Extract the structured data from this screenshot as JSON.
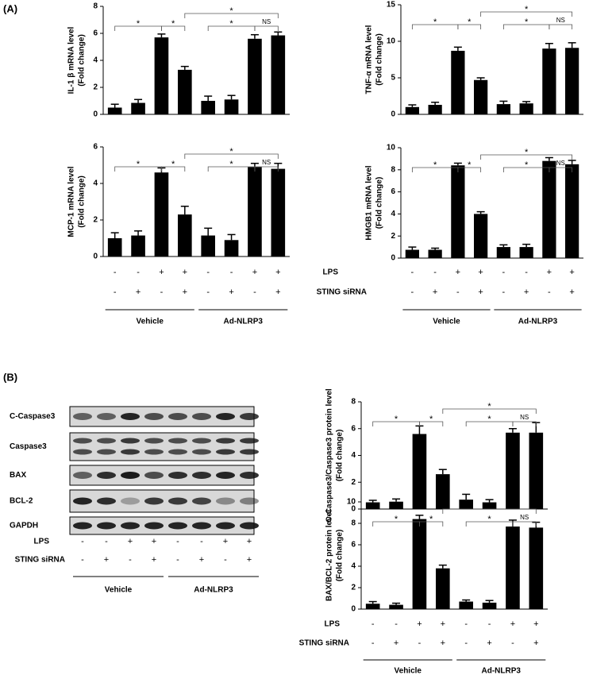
{
  "panel_labels": [
    "(A)",
    "(B)"
  ],
  "conditions": {
    "rows": [
      {
        "name": "LPS",
        "signs": [
          "-",
          "-",
          "+",
          "+",
          "-",
          "-",
          "+",
          "+"
        ]
      },
      {
        "name": "STING siRNA",
        "signs": [
          "-",
          "+",
          "-",
          "+",
          "-",
          "+",
          "-",
          "+"
        ]
      }
    ],
    "groups": [
      "Vehicle",
      "Ad-NLRP3"
    ]
  },
  "blot": {
    "labels": [
      "C-Caspase3",
      "Caspase3",
      "BAX",
      "BCL-2",
      "GAPDH"
    ]
  },
  "chart_data": [
    {
      "type": "bar",
      "y_label": [
        "IL-1 β mRNA level",
        "(Fold change)"
      ],
      "color": "#000000",
      "values": [
        0.5,
        0.85,
        5.7,
        3.3,
        1.0,
        1.1,
        5.6,
        5.85
      ],
      "errors": [
        0.25,
        0.25,
        0.25,
        0.25,
        0.35,
        0.3,
        0.3,
        0.25
      ],
      "ylim": [
        0,
        8
      ],
      "yticks": [
        0,
        2,
        4,
        6,
        8
      ],
      "annotations": [
        "*",
        "*",
        "*",
        "*",
        "NS"
      ]
    },
    {
      "type": "bar",
      "y_label": [
        "TNF-α mRNA level",
        "(Fold change)"
      ],
      "color": "#000000",
      "values": [
        1.0,
        1.3,
        8.7,
        4.7,
        1.4,
        1.5,
        9.0,
        9.1
      ],
      "errors": [
        0.3,
        0.35,
        0.5,
        0.3,
        0.4,
        0.25,
        0.7,
        0.7
      ],
      "ylim": [
        0,
        15
      ],
      "yticks": [
        0,
        5,
        10,
        15
      ],
      "annotations": [
        "*",
        "*",
        "*",
        "*",
        "NS"
      ]
    },
    {
      "type": "bar",
      "y_label": [
        "MCP-1 mRNA level",
        "(Fold change)"
      ],
      "color": "#000000",
      "values": [
        1.0,
        1.15,
        4.6,
        2.3,
        1.15,
        0.9,
        4.9,
        4.8
      ],
      "errors": [
        0.3,
        0.25,
        0.25,
        0.45,
        0.4,
        0.3,
        0.2,
        0.3
      ],
      "ylim": [
        0,
        6
      ],
      "yticks": [
        0,
        2,
        4,
        6
      ],
      "annotations": [
        "*",
        "*",
        "*",
        "*",
        "NS"
      ]
    },
    {
      "type": "bar",
      "y_label": [
        "HMGB1 mRNA level",
        "(Fold change)"
      ],
      "color": "#000000",
      "values": [
        0.75,
        0.75,
        8.4,
        4.0,
        1.0,
        1.0,
        8.8,
        8.5
      ],
      "errors": [
        0.25,
        0.15,
        0.2,
        0.2,
        0.2,
        0.25,
        0.3,
        0.35
      ],
      "ylim": [
        0,
        10
      ],
      "yticks": [
        0,
        2,
        4,
        6,
        8,
        10
      ],
      "annotations": [
        "*",
        "*",
        "*",
        "*",
        "NS"
      ]
    },
    {
      "type": "bar",
      "y_label": [
        "C-Caspase3/Caspase3 protein level",
        "(Fold change)"
      ],
      "color": "#000000",
      "values": [
        0.5,
        0.55,
        5.6,
        2.6,
        0.7,
        0.5,
        5.7,
        5.7
      ],
      "errors": [
        0.15,
        0.2,
        0.6,
        0.35,
        0.4,
        0.2,
        0.3,
        0.75
      ],
      "ylim": [
        0,
        8
      ],
      "yticks": [
        0,
        2,
        4,
        6,
        8
      ],
      "annotations": [
        "*",
        "*",
        "*",
        "*",
        "NS"
      ]
    },
    {
      "type": "bar",
      "y_label": [
        "BAX/BCL-2 protein level",
        "(Fold change)"
      ],
      "color": "#000000",
      "values": [
        0.5,
        0.4,
        8.4,
        3.8,
        0.7,
        0.6,
        7.7,
        7.6
      ],
      "errors": [
        0.2,
        0.15,
        0.35,
        0.3,
        0.15,
        0.2,
        0.6,
        0.5
      ],
      "ylim": [
        0,
        10
      ],
      "yticks": [
        0,
        2,
        4,
        6,
        8,
        10
      ],
      "annotations": [
        "*",
        "*",
        "*",
        "*",
        "NS"
      ]
    }
  ]
}
